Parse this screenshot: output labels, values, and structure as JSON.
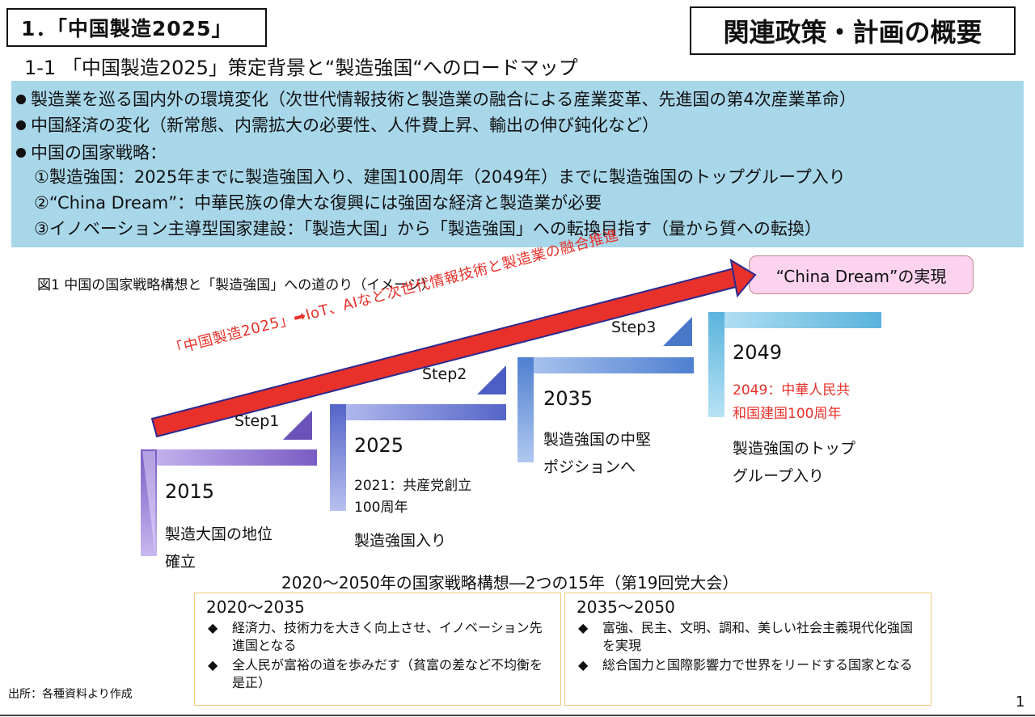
{
  "header": {
    "section_title": "1．「中国製造2025」",
    "box_title": "関連政策・計画の概要",
    "subsection": "1-1 「中国製造2025」策定背景と“製造強国“へのロードマップ"
  },
  "background": {
    "bullets": [
      "製造業を巡る国内外の環境変化（次世代情報技術と製造業の融合による産業変革、先進国の第4次産業革命）",
      "中国経済の変化（新常態、内需拡大の必要性、人件費上昇、輸出の伸び鈍化など）",
      "中国の国家戦略："
    ],
    "sub_items": [
      "①製造強国：2025年までに製造強国入り、建国100周年（2049年）までに製造強国のトップグループ入り",
      "②“China Dream”：中華民族の偉大な復興には強固な経済と製造業が必要",
      "③イノベーション主導型国家建設：「製造大国」から「製造強国」への転換目指す（量から質への転換）"
    ]
  },
  "figure": {
    "caption": "図1 中国の国家戦略構想と「製造強国」への道のり（イメージ）",
    "arrow_text": "「中国製造2025」➡IoT、AIなど次世代情報技術と製造業の融合推進",
    "goal": "“China Dream”の実現",
    "steps": [
      "Step1",
      "Step2",
      "Step3"
    ],
    "stages": [
      {
        "year": "2015",
        "desc": [
          "製造大国の地位",
          "確立"
        ]
      },
      {
        "year": "2025",
        "note": [
          "2021：共産党創立",
          "100周年"
        ],
        "desc": [
          "製造強国入り"
        ]
      },
      {
        "year": "2035",
        "desc": [
          "製造強国の中堅",
          "ポジションへ"
        ]
      },
      {
        "year": "2049",
        "note": [
          "2049：中華人民共",
          "和国建国100周年"
        ],
        "desc": [
          "製造強国のトップ",
          "グループ入り"
        ]
      }
    ],
    "colors": {
      "bluebox": "#a8d7ea",
      "stage1": "#7a5cc4",
      "stage2": "#5565c8",
      "stage3": "#4f7fd0",
      "stage4": "#5ab3dc",
      "arrow": "#e8312a",
      "goal_bg": "#fcd3ee"
    }
  },
  "strategy": {
    "title": "2020～2050年の国家戦略構想―2つの15年（第19回党大会）",
    "periods": [
      {
        "range": "2020～2035",
        "items": [
          "経済力、技術力を大きく向上させ、イノベーション先進国となる",
          "全人民が富裕の道を歩みだす（貧富の差など不均衡を是正）"
        ]
      },
      {
        "range": "2035～2050",
        "items": [
          "富強、民主、文明、調和、美しい社会主義現代化強国を実現",
          "総合国力と国際影響力で世界をリードする国家となる"
        ]
      }
    ]
  },
  "footer": {
    "source": "出所：各種資料より作成",
    "page": "1"
  }
}
